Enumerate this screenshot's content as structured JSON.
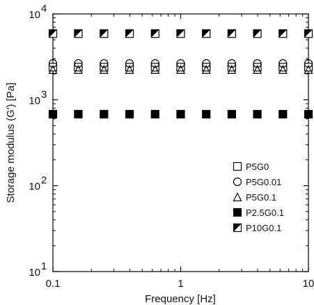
{
  "chart_data": {
    "type": "scatter",
    "xlabel": "Frequency [Hz]",
    "ylabel": "Storage modulus (G') [Pa]",
    "x_scale": "log",
    "y_scale": "log",
    "xlim": [
      0.1,
      10
    ],
    "ylim": [
      10,
      10000
    ],
    "x_ticks": [
      {
        "value": 0.1,
        "label": "0.1"
      },
      {
        "value": 1,
        "label": "1"
      },
      {
        "value": 10,
        "label": "10"
      }
    ],
    "y_ticks": [
      {
        "value": 10,
        "base": "10",
        "exp": "1"
      },
      {
        "value": 100,
        "base": "10",
        "exp": "2"
      },
      {
        "value": 1000,
        "base": "10",
        "exp": "3"
      },
      {
        "value": 10000,
        "base": "10",
        "exp": "4"
      }
    ],
    "legend_position": "bottom-right",
    "grid": false,
    "x": [
      0.1,
      0.158,
      0.251,
      0.398,
      0.631,
      1.0,
      1.585,
      2.512,
      3.981,
      6.31,
      10.0
    ],
    "series": [
      {
        "name": "P5G0",
        "marker": "square-open",
        "values": [
          2400,
          2400,
          2400,
          2400,
          2400,
          2400,
          2400,
          2400,
          2400,
          2400,
          2400
        ]
      },
      {
        "name": "P5G0.01",
        "marker": "circle-open",
        "values": [
          2650,
          2650,
          2650,
          2650,
          2650,
          2650,
          2650,
          2650,
          2650,
          2650,
          2650
        ]
      },
      {
        "name": "P5G0.1",
        "marker": "triangle-open",
        "values": [
          2250,
          2250,
          2250,
          2250,
          2250,
          2250,
          2250,
          2250,
          2250,
          2250,
          2250
        ]
      },
      {
        "name": "P2.5G0.1",
        "marker": "square-filled",
        "values": [
          680,
          680,
          680,
          680,
          680,
          680,
          680,
          680,
          680,
          680,
          680
        ]
      },
      {
        "name": "P10G0.1",
        "marker": "square-half",
        "values": [
          5900,
          5900,
          5900,
          5900,
          5900,
          5900,
          5900,
          5900,
          5900,
          5900,
          5900
        ]
      }
    ]
  }
}
